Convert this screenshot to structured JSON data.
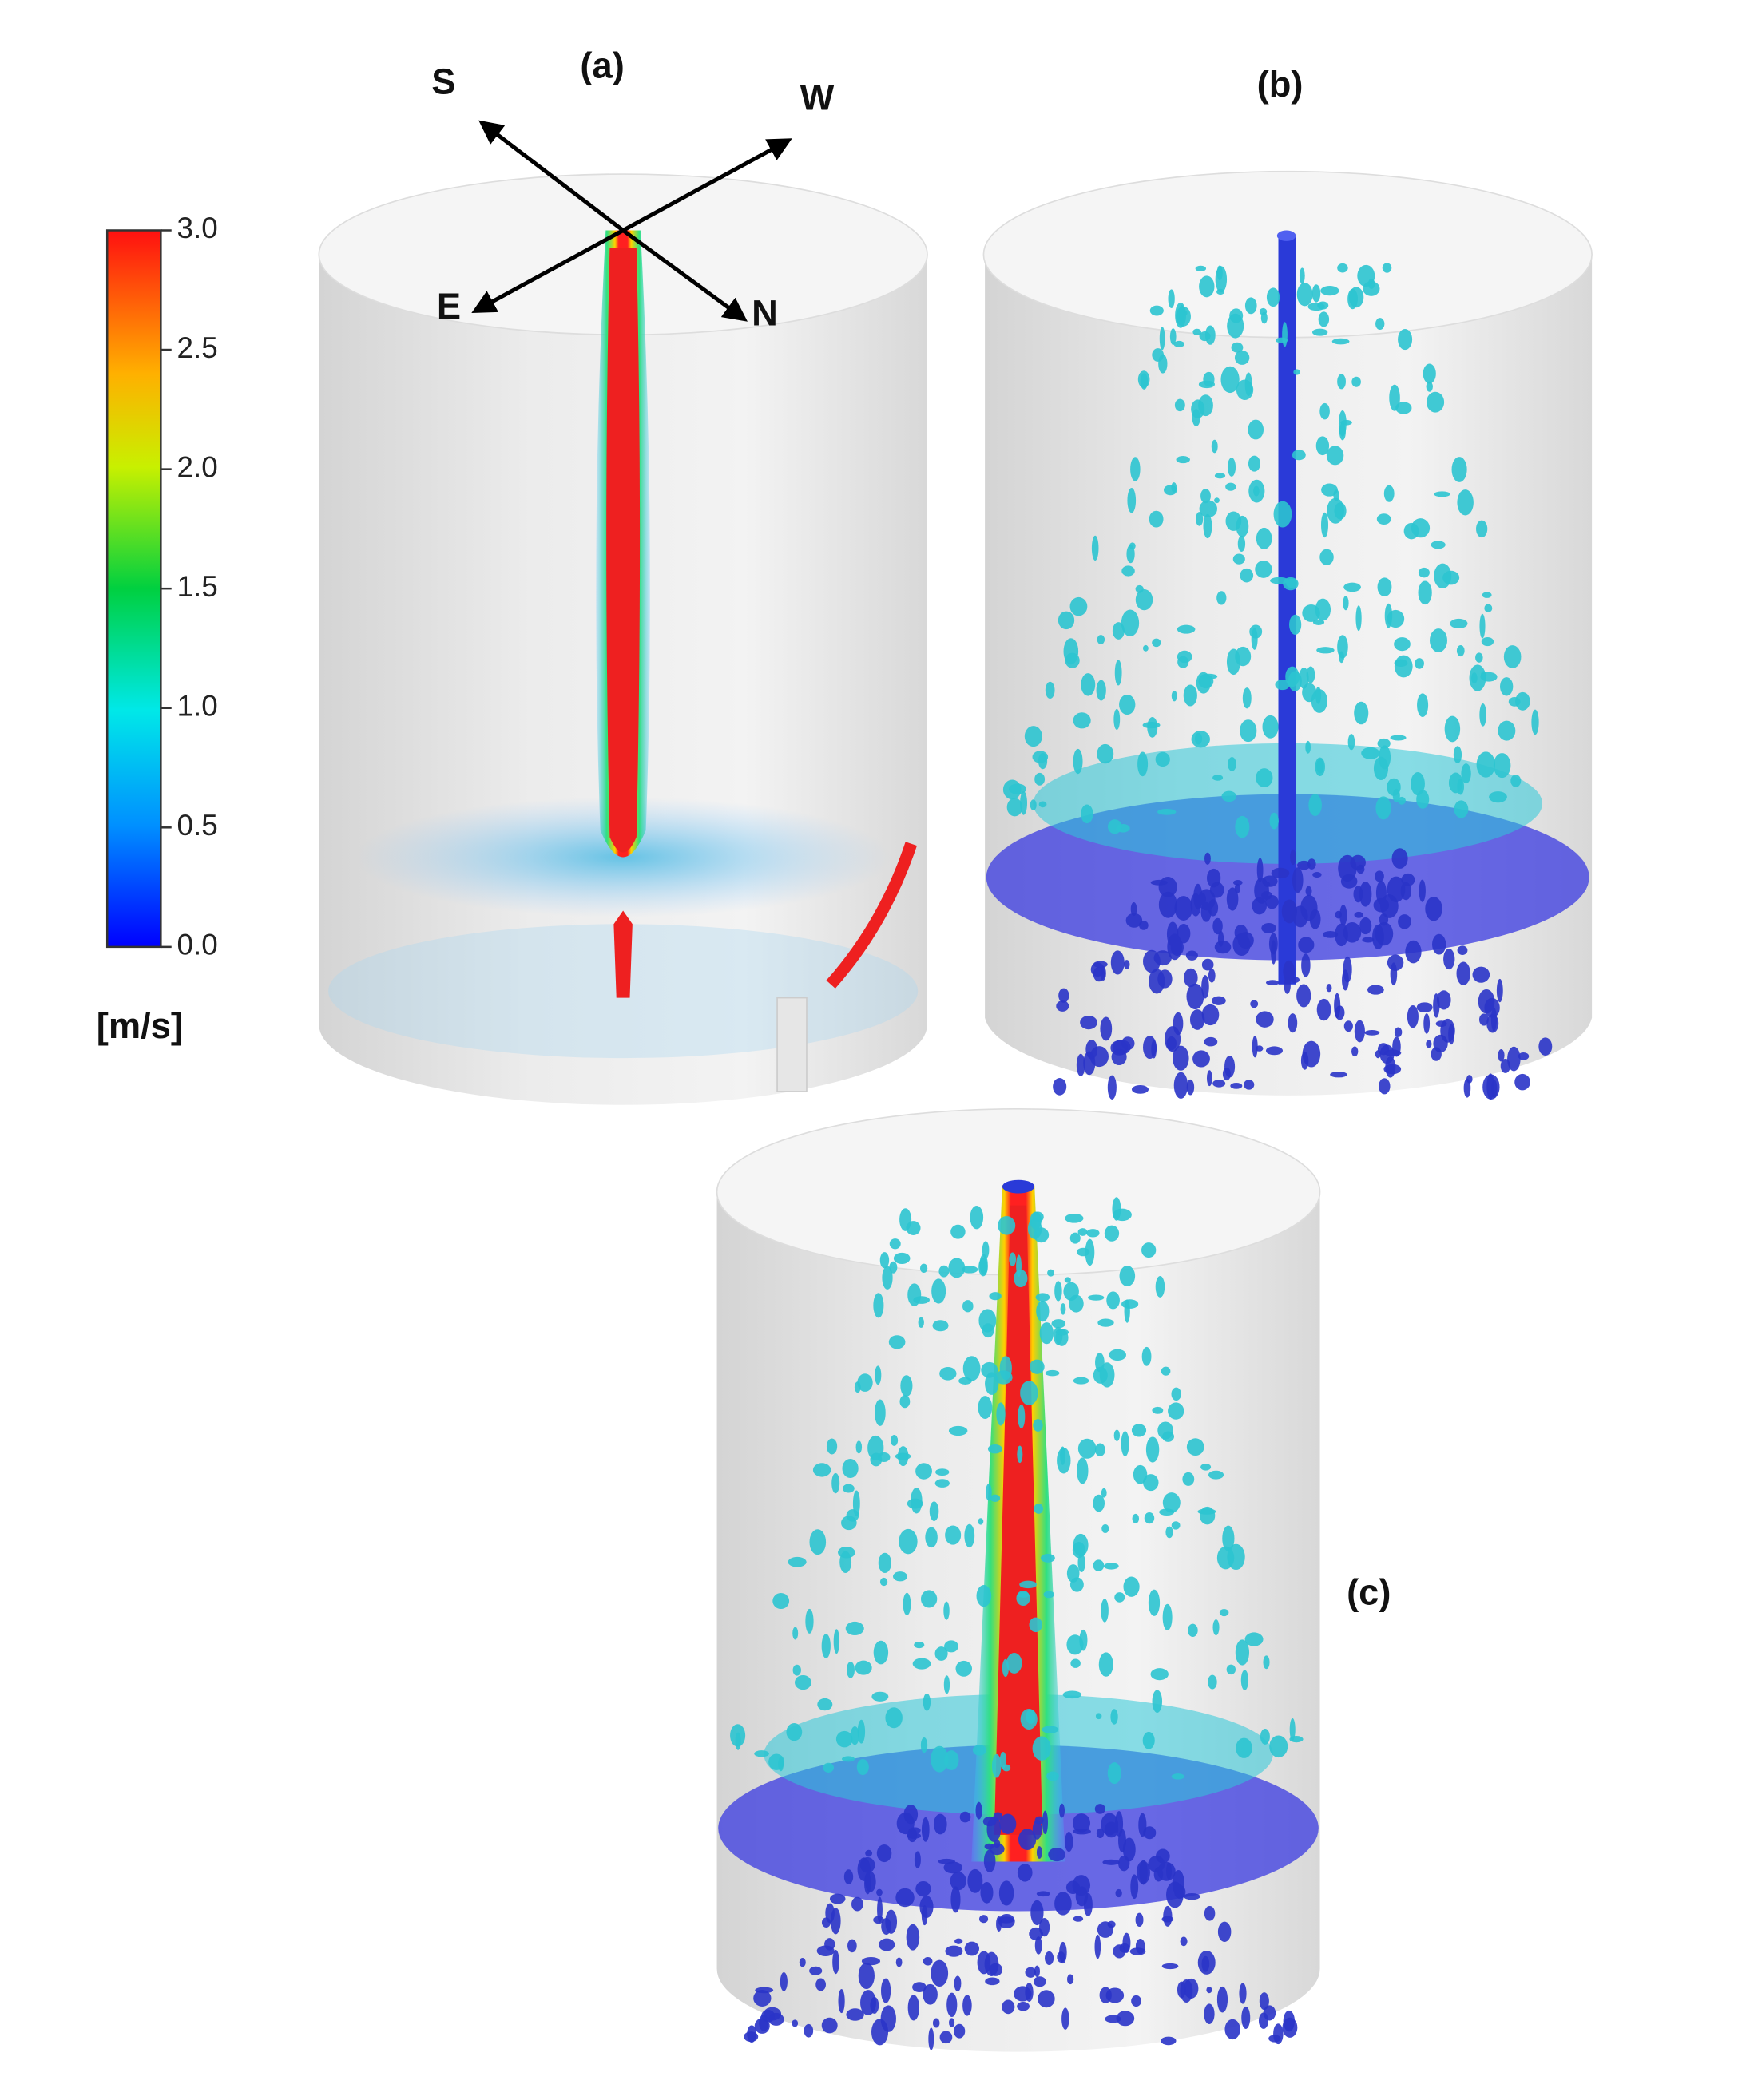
{
  "figure": {
    "panels": [
      {
        "label": "(a)"
      },
      {
        "label": "(b)"
      },
      {
        "label": "(c)"
      }
    ],
    "compass": {
      "south": "S",
      "west": "W",
      "east": "E",
      "north": "N"
    },
    "colorbar": {
      "range": [
        0,
        3
      ],
      "ticks": [
        {
          "value": 0,
          "label": "0.0"
        },
        0.5,
        {
          "value": 1,
          "label": "1.0"
        },
        1.5,
        {
          "value": 2,
          "label": "2.0"
        },
        2.5,
        {
          "value": 3,
          "label": "3.0"
        }
      ],
      "unit": "[m/s]"
    }
  }
}
